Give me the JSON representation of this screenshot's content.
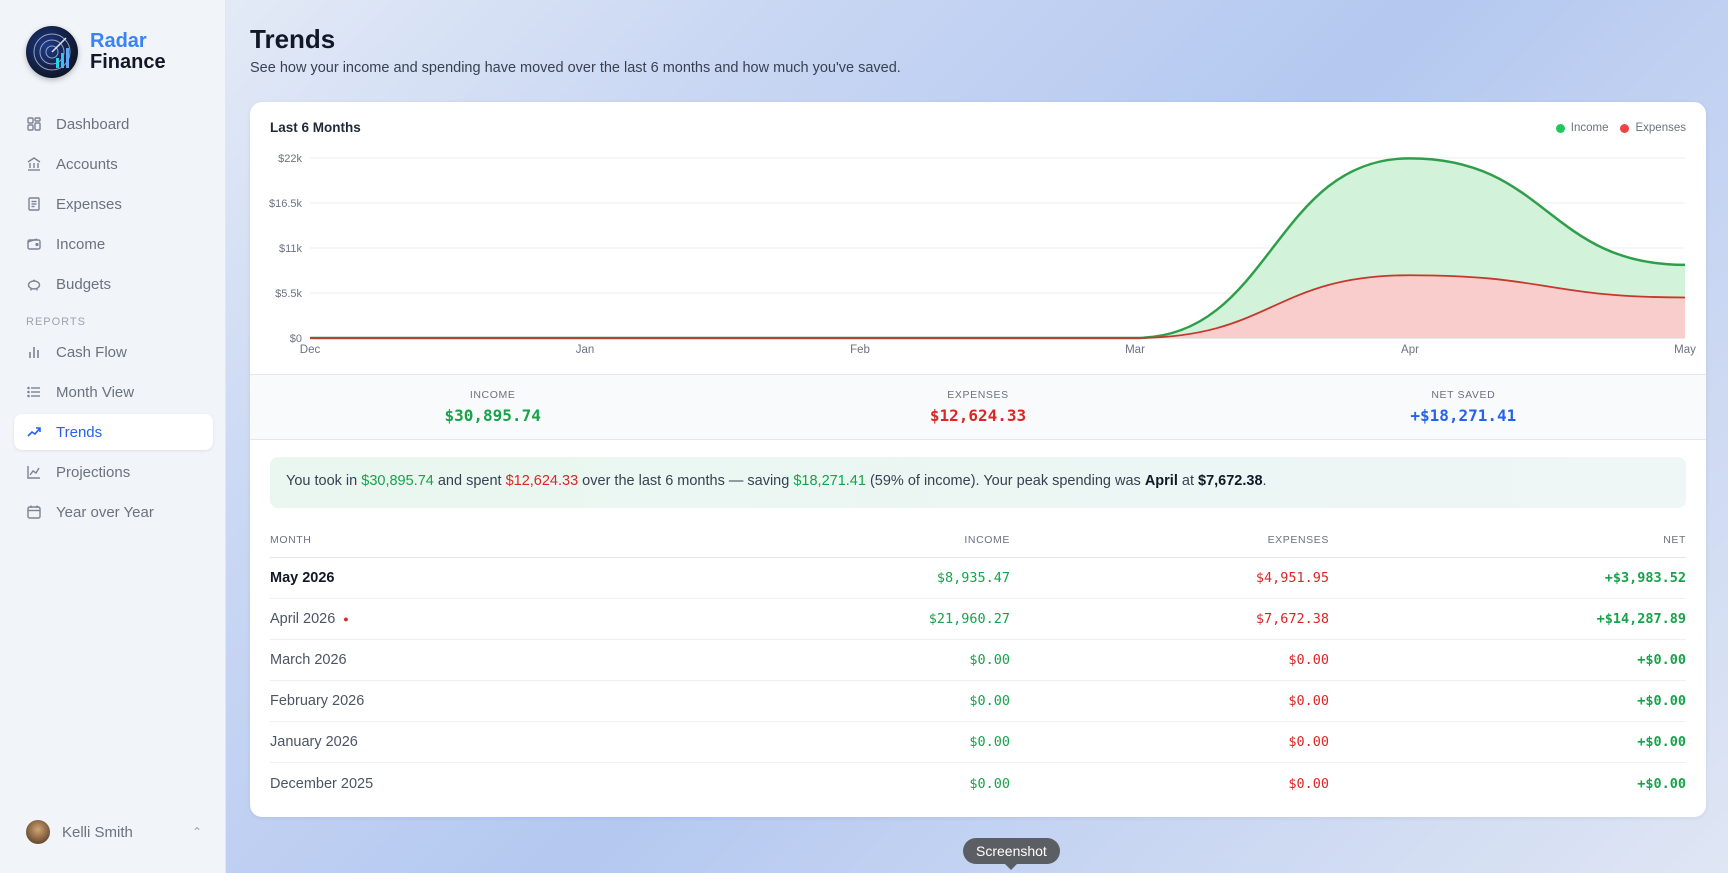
{
  "brand": {
    "line1": "Radar",
    "line2": "Finance"
  },
  "nav": {
    "items": [
      {
        "label": "Dashboard",
        "icon": "dashboard-icon"
      },
      {
        "label": "Accounts",
        "icon": "bank-icon"
      },
      {
        "label": "Expenses",
        "icon": "receipt-icon"
      },
      {
        "label": "Income",
        "icon": "wallet-icon"
      },
      {
        "label": "Budgets",
        "icon": "piggy-bank-icon"
      }
    ],
    "reports_label": "REPORTS",
    "reports": [
      {
        "label": "Cash Flow",
        "icon": "bar-chart-icon"
      },
      {
        "label": "Month View",
        "icon": "list-icon"
      },
      {
        "label": "Trends",
        "icon": "trending-up-icon",
        "active": true
      },
      {
        "label": "Projections",
        "icon": "line-chart-icon"
      },
      {
        "label": "Year over Year",
        "icon": "calendar-icon"
      }
    ]
  },
  "user": {
    "name": "Kelli Smith"
  },
  "page": {
    "title": "Trends",
    "subtitle": "See how your income and spending have moved over the last 6 months and how much you've saved."
  },
  "chart_data": {
    "type": "area",
    "title": "Last 6 Months",
    "categories": [
      "Dec",
      "Jan",
      "Feb",
      "Mar",
      "Apr",
      "May"
    ],
    "y_ticks": [
      "$0",
      "$5.5k",
      "$11k",
      "$16.5k",
      "$22k"
    ],
    "ylim": [
      0,
      22000
    ],
    "series": [
      {
        "name": "Income",
        "values": [
          0,
          0,
          0,
          0,
          21960.27,
          8935.47
        ],
        "color": "#16a34a"
      },
      {
        "name": "Expenses",
        "values": [
          0,
          0,
          0,
          0,
          7672.38,
          4951.95
        ],
        "color": "#dc2626"
      }
    ],
    "legend": "top-right",
    "grid": true
  },
  "stats": {
    "income_label": "INCOME",
    "income_value": "$30,895.74",
    "expenses_label": "EXPENSES",
    "expenses_value": "$12,624.33",
    "net_label": "NET SAVED",
    "net_value": "+$18,271.41"
  },
  "insight": {
    "p1": "You took in ",
    "income": "$30,895.74",
    "p2": " and spent ",
    "spent": "$12,624.33",
    "p3": " over the last 6 months — saving ",
    "saved": "$18,271.41",
    "p4": " (59% of income). Your peak spending was ",
    "peak_month": "April",
    "p5": " at ",
    "peak_amount": "$7,672.38",
    "p6": "."
  },
  "table": {
    "headers": {
      "month": "MONTH",
      "income": "INCOME",
      "expenses": "EXPENSES",
      "net": "NET"
    },
    "rows": [
      {
        "month": "May 2026",
        "income": "$8,935.47",
        "expenses": "$4,951.95",
        "net": "+$3,983.52"
      },
      {
        "month": "April 2026",
        "income": "$21,960.27",
        "expenses": "$7,672.38",
        "net": "+$14,287.89",
        "peak": "●"
      },
      {
        "month": "March 2026",
        "income": "$0.00",
        "expenses": "$0.00",
        "net": "+$0.00"
      },
      {
        "month": "February 2026",
        "income": "$0.00",
        "expenses": "$0.00",
        "net": "+$0.00"
      },
      {
        "month": "January 2026",
        "income": "$0.00",
        "expenses": "$0.00",
        "net": "+$0.00"
      },
      {
        "month": "December 2025",
        "income": "$0.00",
        "expenses": "$0.00",
        "net": "+$0.00"
      }
    ]
  },
  "tooltip": {
    "text": "Screenshot"
  }
}
